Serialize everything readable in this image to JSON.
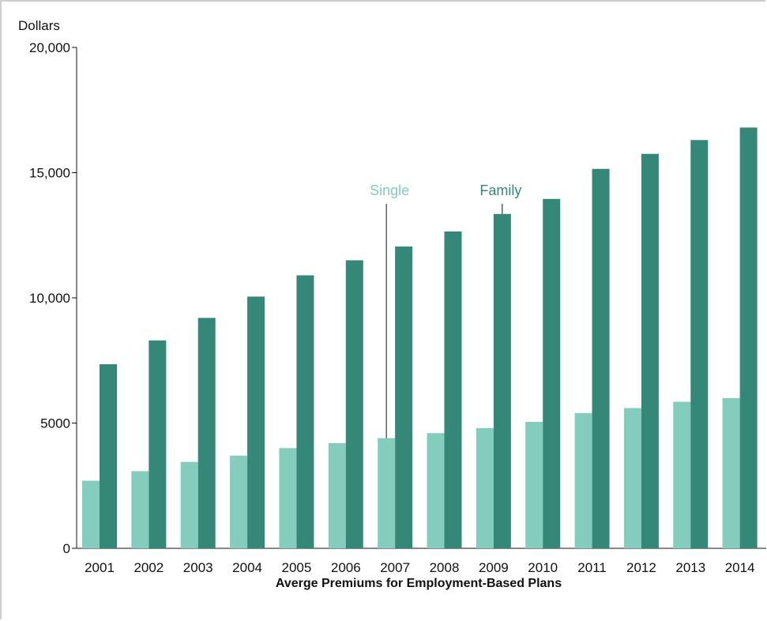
{
  "chart_data": {
    "type": "bar",
    "title": "Averge Premiums for Employment-Based Plans",
    "ylabel": "Dollars",
    "xlabel": "",
    "categories": [
      "2001",
      "2002",
      "2003",
      "2004",
      "2005",
      "2006",
      "2007",
      "2008",
      "2009",
      "2010",
      "2011",
      "2012",
      "2013",
      "2014"
    ],
    "series": [
      {
        "name": "Single",
        "color": "#84cdbd",
        "values": [
          2700,
          3080,
          3450,
          3700,
          4000,
          4200,
          4400,
          4600,
          4800,
          5050,
          5400,
          5600,
          5850,
          6000
        ]
      },
      {
        "name": "Family",
        "color": "#358878",
        "values": [
          7350,
          8300,
          9200,
          10050,
          10900,
          11500,
          12050,
          12650,
          13350,
          13950,
          15150,
          15750,
          16300,
          16800
        ]
      }
    ],
    "ylim": [
      0,
      20000
    ],
    "yticks": [
      0,
      5000,
      10000,
      15000,
      20000
    ],
    "ytick_labels": [
      "0",
      "5000",
      "10,000",
      "15,000",
      "20,000"
    ],
    "grid": false,
    "legend": "callouts above 2007 and 2009 bars"
  }
}
